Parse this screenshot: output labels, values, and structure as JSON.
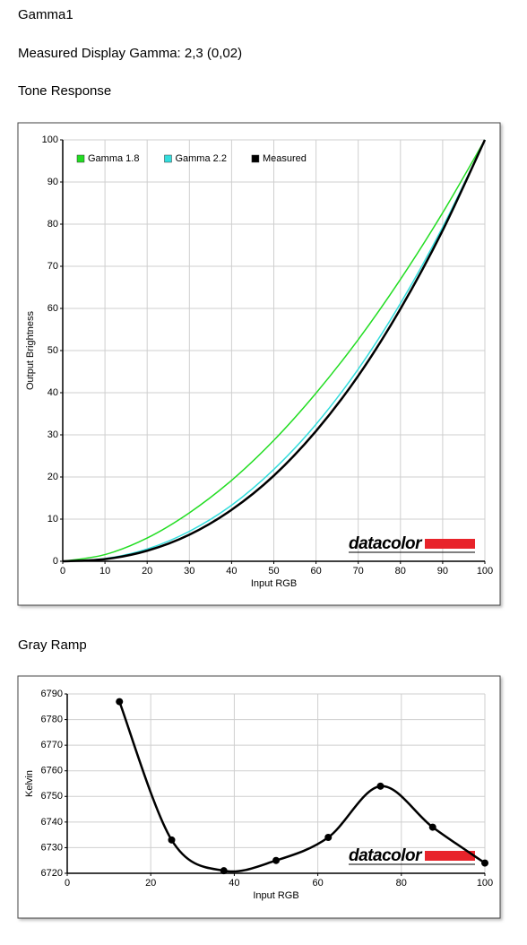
{
  "header": {
    "title": "Gamma1",
    "subtitle": "Measured Display Gamma: 2,3 (0,02)"
  },
  "sections": [
    "Tone Response",
    "Gray Ramp"
  ],
  "chart_data": [
    {
      "type": "line",
      "x": [
        0,
        10,
        20,
        30,
        40,
        50,
        60,
        70,
        80,
        90,
        100
      ],
      "series": [
        {
          "name": "Gamma 1.8",
          "color": "#22dd22",
          "values": [
            0,
            1.58,
            5.52,
            11.5,
            19.2,
            28.7,
            39.9,
            52.6,
            66.9,
            82.7,
            100
          ]
        },
        {
          "name": "Gamma 2.2",
          "color": "#33dddd",
          "values": [
            0,
            0.63,
            2.9,
            7.1,
            13.3,
            21.8,
            32.5,
            45.6,
            61.2,
            79.3,
            100
          ]
        },
        {
          "name": "Measured",
          "color": "#000000",
          "values": [
            0,
            0.5,
            2.5,
            6.3,
            12.2,
            20.3,
            30.9,
            44.0,
            59.9,
            78.5,
            100
          ]
        }
      ],
      "xlabel": "Input RGB",
      "ylabel": "Output Brightness",
      "xlim": [
        0,
        100
      ],
      "ylim": [
        0,
        100
      ],
      "xticks": [
        0,
        10,
        20,
        30,
        40,
        50,
        60,
        70,
        80,
        90,
        100
      ],
      "yticks": [
        0,
        10,
        20,
        30,
        40,
        50,
        60,
        70,
        80,
        90,
        100
      ],
      "grid": true,
      "legend": "top-left",
      "watermark": "datacolor"
    },
    {
      "type": "line",
      "x": [
        12.5,
        25,
        37.5,
        50,
        62.5,
        75,
        87.5,
        100
      ],
      "series": [
        {
          "color": "#000000",
          "values": [
            6787,
            6733,
            6721,
            6725,
            6734,
            6754,
            6738,
            6724
          ]
        }
      ],
      "xlabel": "Input RGB",
      "ylabel": "Kelvin",
      "xlim": [
        0,
        100
      ],
      "ylim": [
        6720,
        6790
      ],
      "xticks": [
        0,
        20,
        40,
        60,
        80,
        100
      ],
      "yticks": [
        6720,
        6730,
        6740,
        6750,
        6760,
        6770,
        6780,
        6790
      ],
      "grid": true,
      "markers": true,
      "watermark": "datacolor"
    }
  ]
}
